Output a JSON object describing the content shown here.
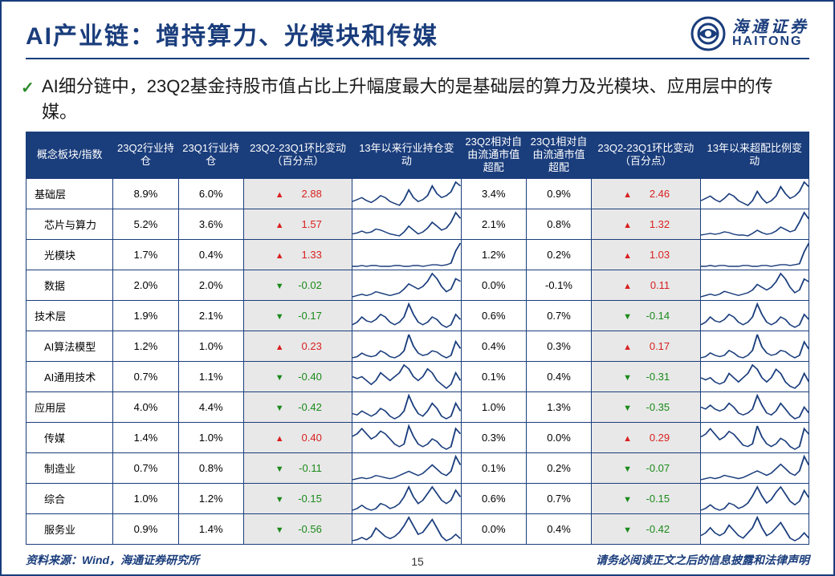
{
  "colors": {
    "brand": "#1a3d7c",
    "up": "#d92020",
    "down": "#1a8a1a",
    "delta_bg": "#e8e8e8",
    "spark_stroke": "#1a3d7c",
    "background": "#ffffff"
  },
  "logo": {
    "cn": "海通证券",
    "en": "HAITONG"
  },
  "title": "AI产业链：增持算力、光模块和传媒",
  "bullet": "AI细分链中，23Q2基金持股市值占比上升幅度最大的是基础层的算力及光模块、应用层中的传媒。",
  "table": {
    "columns": [
      "概念板块/指数",
      "23Q2行业持仓",
      "23Q1行业持仓",
      "23Q2-23Q1环比变动（百分点）",
      "13年以来行业持仓变动",
      "23Q2相对自由流通市值超配",
      "23Q1相对自由流通市值超配",
      "23Q2-23Q1环比变动（百分点）",
      "13年以来超配比例变动"
    ],
    "col_widths_classes": [
      "c-name",
      "c-pct",
      "c-pct",
      "c-delta",
      "c-spark",
      "c-pct",
      "c-pct",
      "c-delta",
      "c-spark"
    ],
    "rows": [
      {
        "name": "基础层",
        "indent": 0,
        "q2": "8.9%",
        "q1": "6.0%",
        "d1": 2.88,
        "spark1": [
          18,
          20,
          22,
          19,
          17,
          20,
          24,
          22,
          18,
          16,
          14,
          20,
          30,
          22,
          18,
          20,
          24,
          34,
          26,
          22,
          24,
          28,
          38,
          34
        ],
        "q2b": "3.4%",
        "q1b": "0.9%",
        "d2": 2.46,
        "spark2": [
          14,
          16,
          18,
          15,
          13,
          16,
          20,
          18,
          14,
          12,
          10,
          14,
          22,
          16,
          12,
          14,
          18,
          26,
          20,
          16,
          18,
          22,
          30,
          26
        ]
      },
      {
        "name": "芯片与算力",
        "indent": 1,
        "q2": "5.2%",
        "q1": "3.6%",
        "d1": 1.57,
        "spark1": [
          10,
          11,
          13,
          11,
          12,
          15,
          14,
          12,
          10,
          9,
          8,
          12,
          18,
          14,
          10,
          12,
          16,
          22,
          18,
          14,
          16,
          22,
          32,
          26
        ],
        "q2b": "2.1%",
        "q1b": "0.8%",
        "d2": 1.32,
        "spark2": [
          8,
          9,
          10,
          9,
          10,
          12,
          11,
          9,
          8,
          8,
          7,
          10,
          14,
          11,
          9,
          10,
          13,
          18,
          15,
          12,
          14,
          24,
          36,
          28
        ]
      },
      {
        "name": "光模块",
        "indent": 1,
        "q2": "1.7%",
        "q1": "0.4%",
        "d1": 1.33,
        "spark1": [
          4,
          4,
          5,
          4,
          5,
          5,
          4,
          4,
          4,
          5,
          5,
          4,
          4,
          5,
          5,
          4,
          5,
          6,
          6,
          5,
          6,
          8,
          24,
          34
        ],
        "q2b": "1.2%",
        "q1b": "0.2%",
        "d2": 1.03,
        "spark2": [
          3,
          3,
          4,
          3,
          4,
          4,
          3,
          3,
          3,
          4,
          4,
          3,
          3,
          4,
          4,
          3,
          4,
          5,
          5,
          4,
          5,
          6,
          20,
          30
        ]
      },
      {
        "name": "数据",
        "indent": 1,
        "q2": "2.0%",
        "q1": "2.0%",
        "d1": -0.02,
        "spark1": [
          6,
          7,
          8,
          7,
          8,
          10,
          9,
          8,
          7,
          8,
          9,
          12,
          16,
          14,
          12,
          14,
          18,
          24,
          20,
          14,
          10,
          12,
          20,
          18
        ],
        "q2b": "0.0%",
        "q1b": "-0.1%",
        "d2": 0.11,
        "spark2": [
          5,
          6,
          7,
          6,
          7,
          9,
          8,
          7,
          6,
          7,
          8,
          10,
          14,
          12,
          10,
          12,
          16,
          22,
          18,
          12,
          8,
          10,
          18,
          16
        ]
      },
      {
        "name": "技术层",
        "indent": 0,
        "q2": "1.9%",
        "q1": "2.1%",
        "d1": -0.17,
        "spark1": [
          12,
          14,
          18,
          15,
          14,
          16,
          20,
          18,
          14,
          12,
          14,
          18,
          28,
          20,
          14,
          12,
          14,
          18,
          16,
          12,
          10,
          12,
          20,
          16
        ],
        "q2b": "0.6%",
        "q1b": "0.7%",
        "d2": -0.14,
        "spark2": [
          10,
          12,
          16,
          13,
          12,
          14,
          18,
          16,
          12,
          10,
          12,
          16,
          26,
          18,
          12,
          10,
          12,
          16,
          14,
          10,
          8,
          10,
          18,
          14
        ]
      },
      {
        "name": "AI算法模型",
        "indent": 1,
        "q2": "1.2%",
        "q1": "1.0%",
        "d1": 0.23,
        "spark1": [
          8,
          9,
          12,
          10,
          9,
          10,
          14,
          12,
          9,
          8,
          10,
          14,
          28,
          18,
          12,
          10,
          11,
          14,
          13,
          10,
          8,
          10,
          22,
          16
        ],
        "q2b": "0.4%",
        "q1b": "0.3%",
        "d2": 0.17,
        "spark2": [
          7,
          8,
          11,
          9,
          8,
          9,
          13,
          11,
          8,
          7,
          9,
          13,
          26,
          16,
          11,
          9,
          10,
          13,
          12,
          9,
          7,
          9,
          20,
          14
        ]
      },
      {
        "name": "AI通用技术",
        "indent": 1,
        "q2": "0.7%",
        "q1": "1.1%",
        "d1": -0.4,
        "spark1": [
          14,
          13,
          14,
          12,
          10,
          12,
          16,
          14,
          12,
          14,
          16,
          20,
          18,
          14,
          12,
          14,
          18,
          16,
          12,
          10,
          8,
          10,
          16,
          12
        ],
        "q2b": "0.1%",
        "q1b": "0.4%",
        "d2": -0.31,
        "spark2": [
          12,
          11,
          12,
          10,
          9,
          10,
          14,
          12,
          10,
          12,
          14,
          18,
          16,
          12,
          10,
          12,
          16,
          14,
          10,
          8,
          7,
          9,
          14,
          10
        ]
      },
      {
        "name": "应用层",
        "indent": 0,
        "q2": "4.0%",
        "q1": "4.4%",
        "d1": -0.42,
        "spark1": [
          16,
          15,
          18,
          16,
          14,
          16,
          20,
          18,
          14,
          12,
          14,
          18,
          30,
          22,
          16,
          14,
          18,
          24,
          20,
          14,
          12,
          14,
          24,
          18
        ],
        "q2b": "1.0%",
        "q1b": "1.3%",
        "d2": -0.35,
        "spark2": [
          22,
          20,
          24,
          20,
          18,
          20,
          26,
          22,
          16,
          14,
          16,
          20,
          34,
          24,
          16,
          14,
          18,
          26,
          20,
          14,
          10,
          12,
          22,
          16
        ]
      },
      {
        "name": "传媒",
        "indent": 1,
        "q2": "1.4%",
        "q1": "1.0%",
        "d1": 0.4,
        "spark1": [
          20,
          22,
          26,
          22,
          18,
          20,
          24,
          22,
          18,
          14,
          12,
          14,
          28,
          20,
          14,
          12,
          14,
          18,
          16,
          12,
          10,
          12,
          26,
          22
        ],
        "q2b": "0.3%",
        "q1b": "0.0%",
        "d2": 0.29,
        "spark2": [
          18,
          20,
          24,
          20,
          16,
          18,
          22,
          20,
          16,
          12,
          11,
          13,
          26,
          18,
          13,
          11,
          13,
          17,
          15,
          11,
          9,
          11,
          24,
          20
        ]
      },
      {
        "name": "制造业",
        "indent": 1,
        "q2": "0.7%",
        "q1": "0.8%",
        "d1": -0.11,
        "spark1": [
          6,
          7,
          8,
          7,
          8,
          10,
          9,
          8,
          7,
          8,
          10,
          12,
          14,
          12,
          10,
          12,
          16,
          20,
          16,
          12,
          10,
          14,
          28,
          20
        ],
        "q2b": "0.1%",
        "q1b": "0.2%",
        "d2": -0.07,
        "spark2": [
          5,
          6,
          7,
          6,
          7,
          9,
          8,
          7,
          6,
          7,
          9,
          11,
          13,
          11,
          9,
          11,
          15,
          19,
          15,
          11,
          9,
          13,
          26,
          18
        ]
      },
      {
        "name": "综合",
        "indent": 1,
        "q2": "1.0%",
        "q1": "1.2%",
        "d1": -0.15,
        "spark1": [
          8,
          9,
          11,
          9,
          8,
          9,
          12,
          11,
          9,
          10,
          12,
          16,
          22,
          16,
          12,
          14,
          18,
          22,
          18,
          14,
          12,
          14,
          20,
          16
        ],
        "q2b": "0.6%",
        "q1b": "0.7%",
        "d2": -0.15,
        "spark2": [
          7,
          8,
          10,
          8,
          7,
          8,
          11,
          10,
          8,
          9,
          11,
          15,
          20,
          15,
          11,
          13,
          17,
          20,
          16,
          12,
          10,
          12,
          18,
          14
        ]
      },
      {
        "name": "服务业",
        "indent": 1,
        "q2": "0.9%",
        "q1": "1.4%",
        "d1": -0.56,
        "spark1": [
          10,
          11,
          13,
          11,
          14,
          22,
          18,
          14,
          12,
          14,
          18,
          24,
          32,
          24,
          16,
          18,
          24,
          30,
          22,
          14,
          10,
          12,
          16,
          12
        ],
        "q2b": "0.0%",
        "q1b": "0.4%",
        "d2": -0.42,
        "spark2": [
          12,
          14,
          18,
          14,
          12,
          14,
          20,
          16,
          12,
          10,
          14,
          18,
          26,
          18,
          12,
          14,
          18,
          22,
          16,
          10,
          8,
          10,
          14,
          10
        ]
      }
    ]
  },
  "footer": {
    "source": "资料来源：Wind，海通证券研究所",
    "disclaimer": "请务必阅读正文之后的信息披露和法律声明",
    "page": "15"
  },
  "arrows": {
    "up": "▲",
    "down": "▼"
  },
  "spark_style": {
    "stroke_width": 1.4,
    "stroke": "#1a3d7c"
  }
}
